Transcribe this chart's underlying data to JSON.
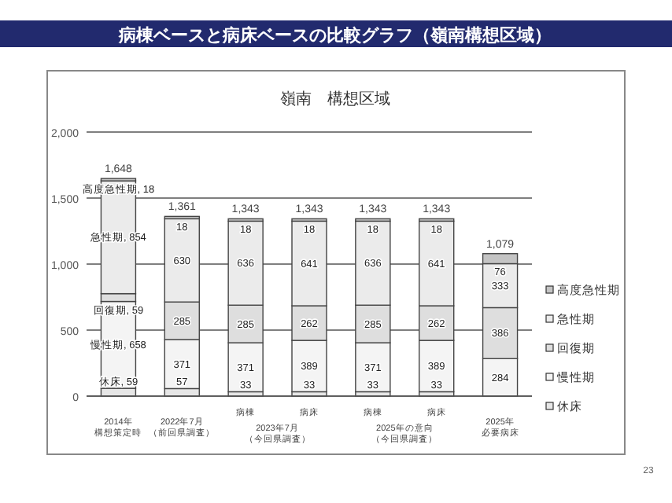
{
  "chart_data": {
    "type": "bar",
    "stacked": true,
    "title": "病棟ベースと病床ベースの比較グラフ（嶺南構想区域）",
    "subtitle": "嶺南　構想区域",
    "categories": [
      "2014年構想策定時",
      "2022年7月（前回県調査）",
      "病棟",
      "病床",
      "病棟",
      "病床",
      "2025年必要病床"
    ],
    "series": [
      {
        "name": "休床",
        "color": "#e6e6e6",
        "values": [
          59,
          57,
          33,
          33,
          33,
          33,
          null
        ],
        "value_labels": [
          "休床, 59",
          "57",
          "33",
          "33",
          "33",
          "33",
          null
        ]
      },
      {
        "name": "慢性期",
        "color": "#f4f4f4",
        "values": [
          658,
          371,
          371,
          389,
          371,
          389,
          284
        ],
        "value_labels": [
          "慢性期, 658",
          "371",
          "371",
          "389",
          "371",
          "389",
          "284"
        ]
      },
      {
        "name": "回復期",
        "color": "#dedede",
        "values": [
          59,
          285,
          285,
          262,
          285,
          262,
          386
        ],
        "value_labels": [
          "回復期, 59",
          "285",
          "285",
          "262",
          "285",
          "262",
          "386"
        ]
      },
      {
        "name": "急性期",
        "color": "#ebebeb",
        "values": [
          854,
          630,
          636,
          641,
          636,
          641,
          333
        ],
        "value_labels": [
          "急性期, 854",
          "630",
          "636",
          "641",
          "636",
          "641",
          "333"
        ]
      },
      {
        "name": "高度急性期",
        "color": "#c4c4c4",
        "values": [
          18,
          18,
          18,
          18,
          18,
          18,
          76
        ],
        "value_labels": [
          "高度急性期, 18",
          "18",
          "18",
          "18",
          "18",
          "18",
          "76"
        ]
      }
    ],
    "totals": [
      "1,648",
      "1,361",
      "1,343",
      "1,343",
      "1,343",
      "1,343",
      "1,079"
    ],
    "ylim": [
      0,
      2000
    ],
    "yticks": [
      0,
      500,
      {
        "value": 1000,
        "label": "1,000"
      },
      {
        "value": 1500,
        "label": "1,500"
      },
      {
        "value": 2000,
        "label": "2,000"
      }
    ],
    "grid": "y",
    "legend": "right",
    "annotations": [
      "2023年7月（今回県調査）",
      "2025年の意向（今回県調査）",
      "23"
    ]
  }
}
